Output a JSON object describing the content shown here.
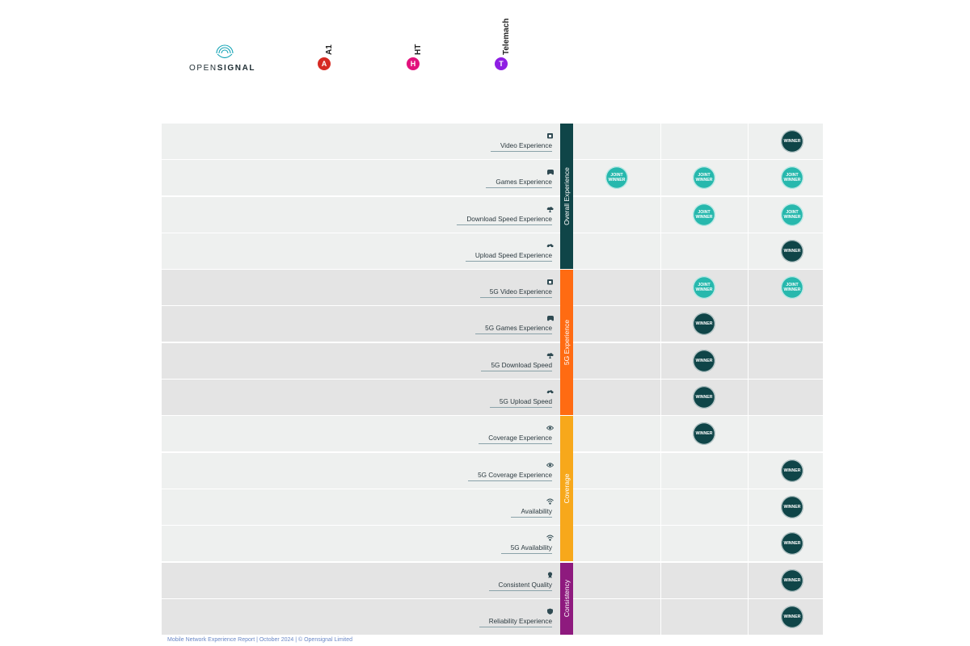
{
  "logo": {
    "text_a": "OPEN",
    "text_b": "SIGNAL",
    "icon": "opensignal-wave-icon"
  },
  "operators": [
    {
      "name": "A1",
      "letter": "A",
      "color": "#d62a23"
    },
    {
      "name": "HT",
      "letter": "H",
      "color": "#e2127c"
    },
    {
      "name": "Telemach",
      "letter": "T",
      "color": "#8e1ee3"
    }
  ],
  "colors": {
    "row_light": "#eef0ef",
    "row_dark": "#e4e4e4",
    "winner": "#0f4548",
    "joint_winner": "#27b8ad"
  },
  "award_labels": {
    "winner": "WINNER",
    "joint_line1": "JOINT",
    "joint_line2": "WINNER"
  },
  "chart_data": {
    "type": "table",
    "columns": [
      "A1",
      "HT",
      "Telemach"
    ],
    "categories": [
      {
        "name": "Overall Experience",
        "color": "#0f4548",
        "shade": "light",
        "metrics": [
          {
            "label": "Video Experience",
            "icon": "video-icon",
            "awards": {
              "A1": "",
              "HT": "",
              "Telemach": "winner"
            }
          },
          {
            "label": "Games Experience",
            "icon": "gamepad-icon",
            "awards": {
              "A1": "joint",
              "HT": "joint",
              "Telemach": "joint"
            }
          },
          {
            "label": "Download Speed Experience",
            "icon": "download-cloud-icon",
            "awards": {
              "A1": "",
              "HT": "joint",
              "Telemach": "joint"
            }
          },
          {
            "label": "Upload Speed Experience",
            "icon": "upload-cloud-icon",
            "awards": {
              "A1": "",
              "HT": "",
              "Telemach": "winner"
            }
          }
        ]
      },
      {
        "name": "5G Experience",
        "color": "#ff6b12",
        "shade": "dark",
        "metrics": [
          {
            "label": "5G Video Experience",
            "icon": "video-icon",
            "awards": {
              "A1": "",
              "HT": "joint",
              "Telemach": "joint"
            }
          },
          {
            "label": "5G Games Experience",
            "icon": "gamepad-icon",
            "awards": {
              "A1": "",
              "HT": "winner",
              "Telemach": ""
            }
          },
          {
            "label": "5G Download Speed",
            "icon": "download-cloud-icon",
            "awards": {
              "A1": "",
              "HT": "winner",
              "Telemach": ""
            }
          },
          {
            "label": "5G Upload Speed",
            "icon": "upload-cloud-icon",
            "awards": {
              "A1": "",
              "HT": "winner",
              "Telemach": ""
            }
          }
        ]
      },
      {
        "name": "Coverage",
        "color": "#f7a81b",
        "shade": "light",
        "metrics": [
          {
            "label": "Coverage Experience",
            "icon": "eye-icon",
            "awards": {
              "A1": "",
              "HT": "winner",
              "Telemach": ""
            }
          },
          {
            "label": "5G Coverage Experience",
            "icon": "eye-icon",
            "awards": {
              "A1": "",
              "HT": "",
              "Telemach": "winner"
            }
          },
          {
            "label": "Availability",
            "icon": "wifi-icon",
            "awards": {
              "A1": "",
              "HT": "",
              "Telemach": "winner"
            }
          },
          {
            "label": "5G Availability",
            "icon": "wifi-icon",
            "awards": {
              "A1": "",
              "HT": "",
              "Telemach": "winner"
            }
          }
        ]
      },
      {
        "name": "Consistency",
        "color": "#8e1a7e",
        "shade": "dark",
        "metrics": [
          {
            "label": "Consistent Quality",
            "icon": "badge-icon",
            "awards": {
              "A1": "",
              "HT": "",
              "Telemach": "winner"
            }
          },
          {
            "label": "Reliability Experience",
            "icon": "shield-icon",
            "awards": {
              "A1": "",
              "HT": "",
              "Telemach": "winner"
            }
          }
        ]
      }
    ]
  },
  "footer": {
    "text": "Mobile Network Experience Report | October 2024 | © Opensignal Limited"
  }
}
